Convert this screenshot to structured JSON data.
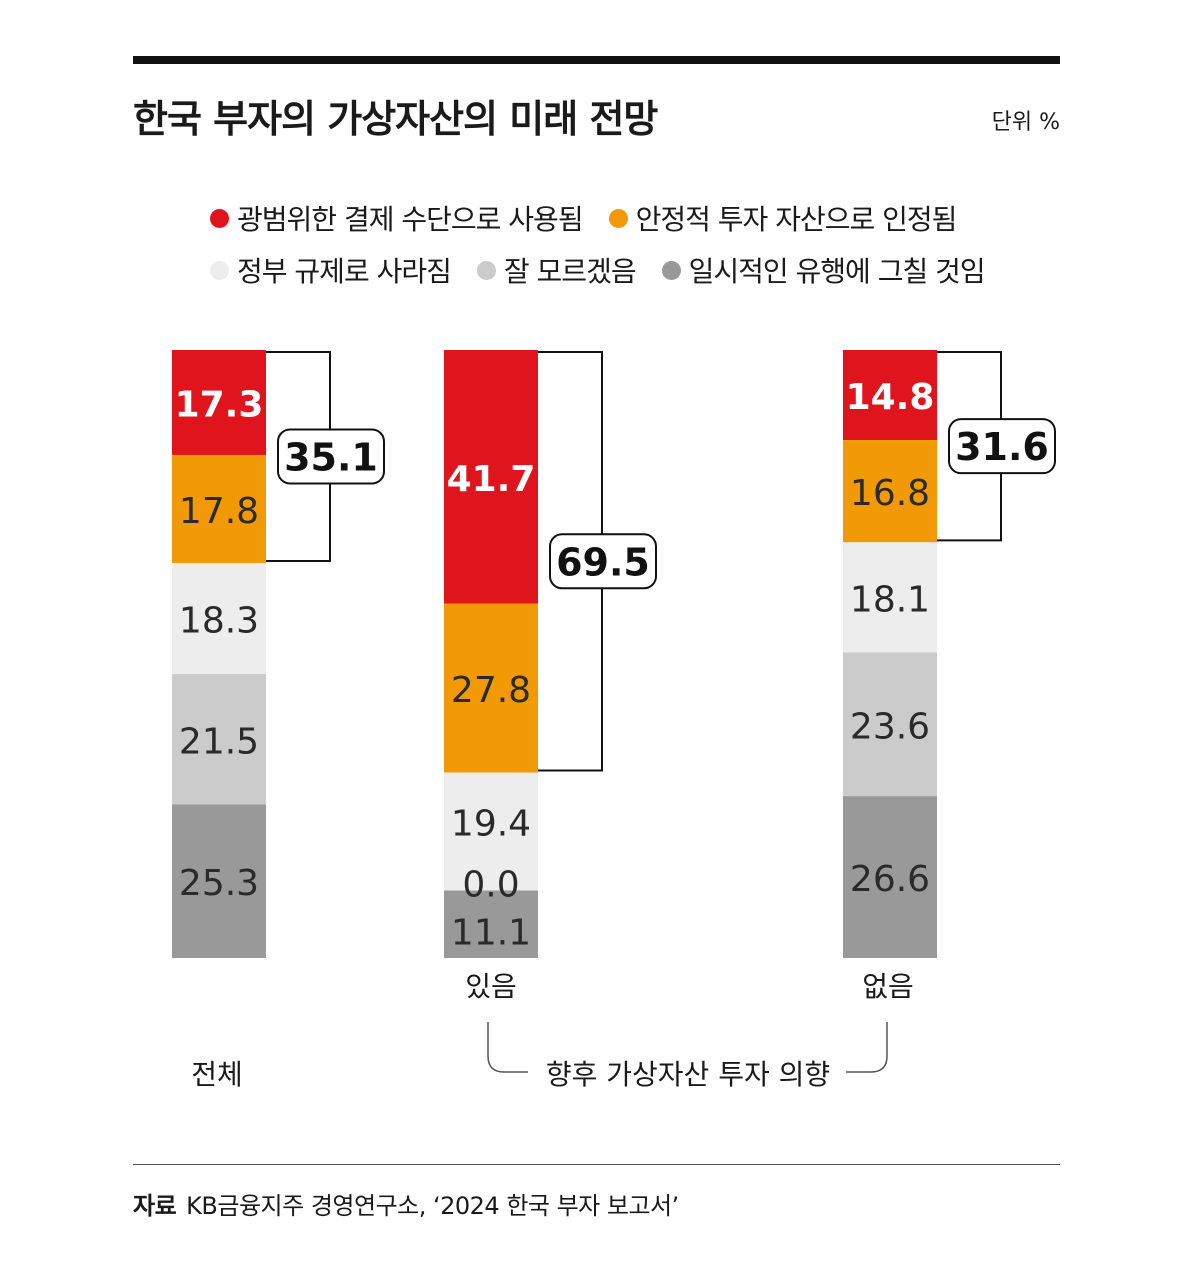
{
  "title": "한국 부자의 가상자산의 미래 전망",
  "unit": "단위 %",
  "source_label": "자료",
  "source_text": "KB금융지주 경영연구소, ‘2024 한국 부자 보고서’",
  "colors": {
    "red": "#e0141c",
    "orange": "#f29a05",
    "light": "#ededed",
    "mid": "#cbcbcb",
    "dark": "#999999"
  },
  "chart_data": {
    "type": "bar",
    "stacked": true,
    "orientation": "vertical",
    "categories": [
      "전체",
      "있음",
      "없음"
    ],
    "group_label": "향후 가상자산 투자 의향",
    "series": [
      {
        "name": "광범위한 결제 수단으로 사용됨",
        "values": [
          17.3,
          41.7,
          14.8
        ],
        "labels": [
          "17.3",
          "41.7",
          "14.8"
        ],
        "color": "#e0141c"
      },
      {
        "name": "안정적 투자 자산으로 인정됨",
        "values": [
          17.8,
          27.8,
          16.8
        ],
        "labels": [
          "17.8",
          "27.8",
          "16.8"
        ],
        "color": "#f29a05"
      },
      {
        "name": "정부 규제로 사라짐",
        "values": [
          18.3,
          19.4,
          18.1
        ],
        "labels": [
          "18.3",
          "19.4",
          "18.1"
        ],
        "color": "#ededed"
      },
      {
        "name": "잘 모르겠음",
        "values": [
          21.5,
          0.0,
          23.6
        ],
        "labels": [
          "21.5",
          "0.0",
          "23.6"
        ],
        "color": "#cbcbcb"
      },
      {
        "name": "일시적인 유행에 그칠 것임",
        "values": [
          25.3,
          11.1,
          26.6
        ],
        "labels": [
          "25.3",
          "11.1",
          "26.6"
        ],
        "color": "#999999"
      }
    ],
    "bracket_totals": [
      "35.1",
      "69.5",
      "31.6"
    ],
    "ylim": [
      0,
      100
    ]
  }
}
